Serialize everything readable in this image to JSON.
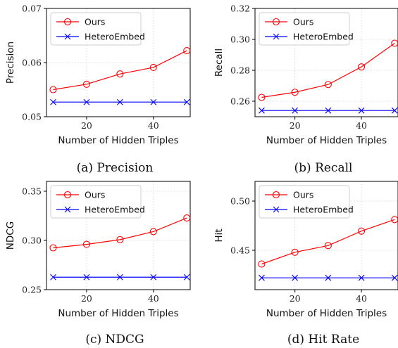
{
  "chart_data": [
    {
      "type": "line",
      "caption": "(a) Precision",
      "xlabel": "Number of Hidden Triples",
      "ylabel": "Precision",
      "x": [
        10,
        20,
        30,
        40,
        50
      ],
      "xlim": [
        8,
        51
      ],
      "xticks": [
        20,
        40
      ],
      "ylim": [
        0.05,
        0.07
      ],
      "yticks": [
        0.05,
        0.06,
        0.07
      ],
      "yticklabels": [
        "0.05",
        "0.06",
        "0.07"
      ],
      "legend": "top-left",
      "grid": true,
      "series": [
        {
          "name": "Ours",
          "color": "#ff0000",
          "marker": "circle",
          "values": [
            0.055,
            0.056,
            0.0579,
            0.0591,
            0.0622
          ]
        },
        {
          "name": "HeteroEmbed",
          "color": "#0000ff",
          "marker": "x",
          "values": [
            0.0527,
            0.0527,
            0.0527,
            0.0527,
            0.0527
          ]
        }
      ]
    },
    {
      "type": "line",
      "caption": "(b) Recall",
      "xlabel": "Number of Hidden Triples",
      "ylabel": "Recall",
      "x": [
        10,
        20,
        30,
        40,
        50
      ],
      "xlim": [
        8,
        51
      ],
      "xticks": [
        20,
        40
      ],
      "ylim": [
        0.25,
        0.32
      ],
      "yticks": [
        0.26,
        0.28,
        0.3,
        0.32
      ],
      "yticklabels": [
        "0.26",
        "0.28",
        "0.30",
        "0.32"
      ],
      "legend": "top-left",
      "grid": true,
      "series": [
        {
          "name": "Ours",
          "color": "#ff0000",
          "marker": "circle",
          "values": [
            0.2625,
            0.2658,
            0.2708,
            0.2822,
            0.2975
          ]
        },
        {
          "name": "HeteroEmbed",
          "color": "#0000ff",
          "marker": "x",
          "values": [
            0.254,
            0.254,
            0.254,
            0.254,
            0.254
          ]
        }
      ]
    },
    {
      "type": "line",
      "caption": "(c) NDCG",
      "xlabel": "Number of Hidden Triples",
      "ylabel": "NDCG",
      "x": [
        10,
        20,
        30,
        40,
        50
      ],
      "xlim": [
        8,
        51
      ],
      "xticks": [
        20,
        40
      ],
      "ylim": [
        0.25,
        0.36
      ],
      "yticks": [
        0.25,
        0.3,
        0.35
      ],
      "yticklabels": [
        "0.25",
        "0.30",
        "0.35"
      ],
      "legend": "top-left",
      "grid": true,
      "series": [
        {
          "name": "Ours",
          "color": "#ff0000",
          "marker": "circle",
          "values": [
            0.2925,
            0.296,
            0.3008,
            0.309,
            0.3228
          ]
        },
        {
          "name": "HeteroEmbed",
          "color": "#0000ff",
          "marker": "x",
          "values": [
            0.2627,
            0.2627,
            0.2627,
            0.2627,
            0.2627
          ]
        }
      ]
    },
    {
      "type": "line",
      "caption": "(d) Hit Rate",
      "xlabel": "Number of Hidden Triples",
      "ylabel": "Hit",
      "x": [
        10,
        20,
        30,
        40,
        50
      ],
      "xlim": [
        8,
        51
      ],
      "xticks": [
        20,
        40
      ],
      "ylim": [
        0.41,
        0.52
      ],
      "yticks": [
        0.45,
        0.5
      ],
      "yticklabels": [
        "0.45",
        "0.50"
      ],
      "legend": "top-left",
      "grid": true,
      "series": [
        {
          "name": "Ours",
          "color": "#ff0000",
          "marker": "circle",
          "values": [
            0.436,
            0.448,
            0.4548,
            0.4695,
            0.4812
          ]
        },
        {
          "name": "HeteroEmbed",
          "color": "#0000ff",
          "marker": "x",
          "values": [
            0.422,
            0.422,
            0.422,
            0.422,
            0.422
          ]
        }
      ]
    }
  ]
}
